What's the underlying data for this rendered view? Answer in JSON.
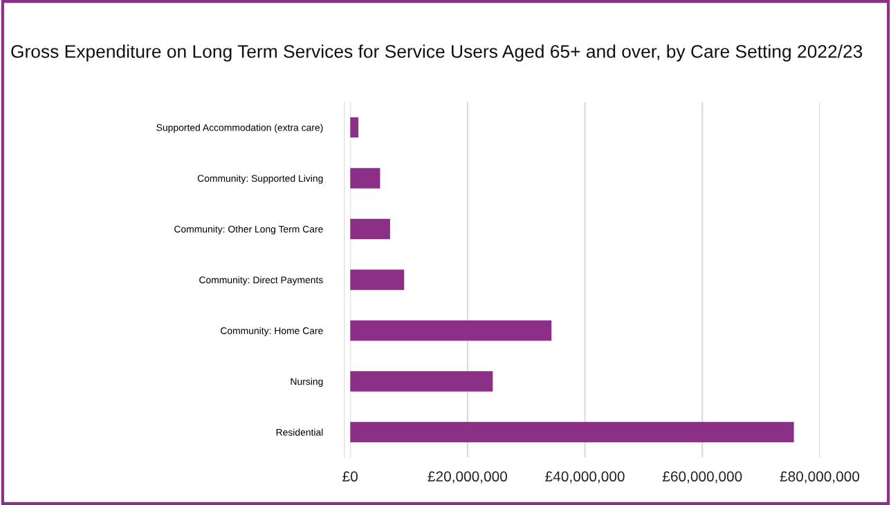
{
  "chart_data": {
    "type": "bar",
    "orientation": "horizontal",
    "title": "Gross Expenditure on Long Term Services for Service Users Aged 65+ and over, by Care Setting 2022/23",
    "categories": [
      "Supported Accommodation (extra care)",
      "Community: Supported Living",
      "Community: Other Long Term Care",
      "Community: Direct Payments",
      "Community: Home Care",
      "Nursing",
      "Residential"
    ],
    "values": [
      1400000,
      5100000,
      6800000,
      9200000,
      34300000,
      24300000,
      75600000
    ],
    "color": "#8b2f87",
    "xlim": [
      0,
      80000000
    ],
    "xticks": [
      {
        "value": 0,
        "label": "£0"
      },
      {
        "value": 20000000,
        "label": "£20,000,000"
      },
      {
        "value": 40000000,
        "label": "£40,000,000"
      },
      {
        "value": 60000000,
        "label": "£60,000,000"
      },
      {
        "value": 80000000,
        "label": "£80,000,000"
      }
    ],
    "grid": "x",
    "legend": false
  }
}
